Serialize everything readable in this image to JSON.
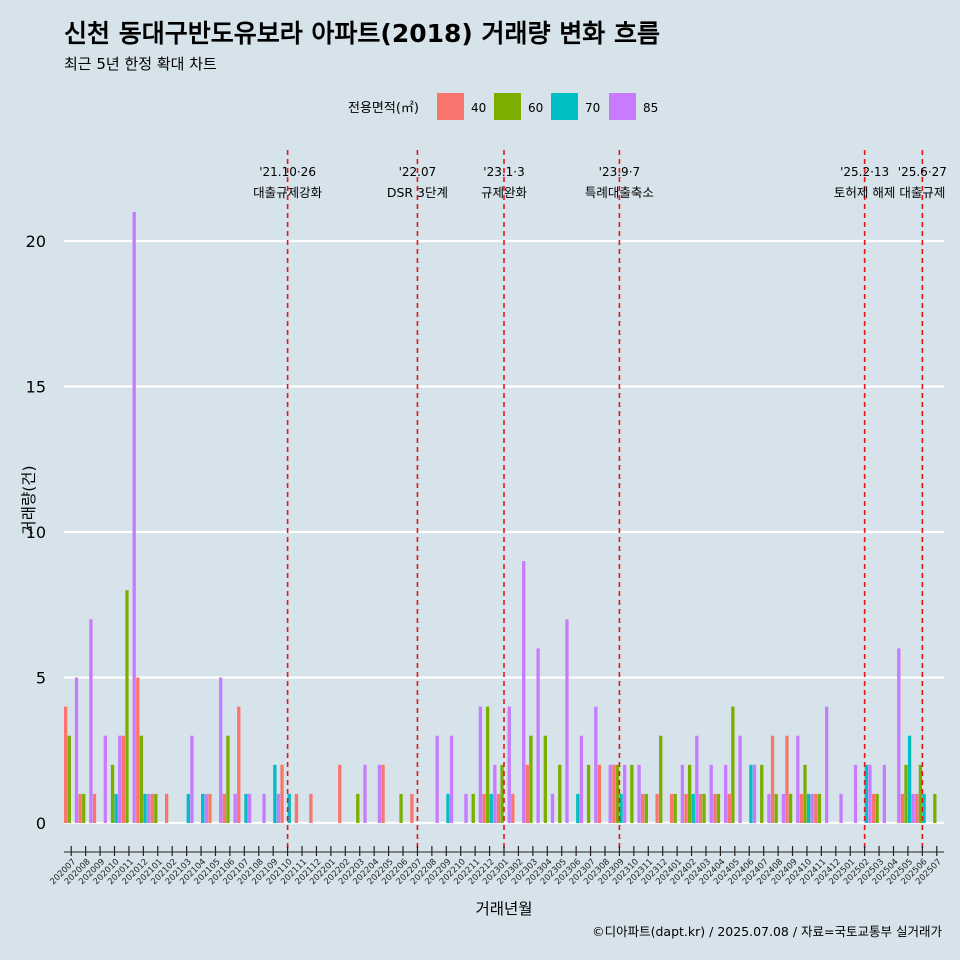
{
  "title": "신천 동대구반도유보라 아파트(2018) 거래량 변화 흐름",
  "subtitle": "최근 5년 한정 확대 차트",
  "caption": "©디아파트(dapt.kr) / 2025.07.08 / 자료=국토교통부 실거래가",
  "colors": {
    "background": "#d6e3ea",
    "grid": "#ffffff",
    "event_line": "#e8141a",
    "s40": "#f8766d",
    "s60": "#7cae00",
    "s70": "#00bfc4",
    "s85": "#c77cff"
  },
  "chart_data": {
    "type": "bar",
    "xlabel": "거래년월",
    "ylabel": "거래량(건)",
    "ylim": [
      0,
      21
    ],
    "yticks": [
      0,
      5,
      10,
      15,
      20
    ],
    "grid": true,
    "legend": {
      "title": "전용면적(㎡)",
      "position": "top"
    },
    "categories": [
      "202007",
      "202008",
      "202009",
      "202010",
      "202011",
      "202012",
      "202101",
      "202102",
      "202103",
      "202104",
      "202105",
      "202106",
      "202107",
      "202108",
      "202109",
      "202110",
      "202111",
      "202112",
      "202201",
      "202202",
      "202203",
      "202204",
      "202205",
      "202206",
      "202207",
      "202208",
      "202209",
      "202210",
      "202211",
      "202212",
      "202301",
      "202302",
      "202303",
      "202304",
      "202305",
      "202306",
      "202307",
      "202308",
      "202309",
      "202310",
      "202311",
      "202312",
      "202401",
      "202402",
      "202403",
      "202404",
      "202405",
      "202406",
      "202407",
      "202408",
      "202409",
      "202410",
      "202411",
      "202412",
      "202501",
      "202502",
      "202503",
      "202504",
      "202505",
      "202506",
      "202507"
    ],
    "series": [
      {
        "name": "40",
        "values": [
          4,
          1,
          1,
          0,
          3,
          5,
          1,
          1,
          0,
          0,
          1,
          1,
          4,
          0,
          0,
          2,
          1,
          1,
          0,
          2,
          0,
          0,
          2,
          0,
          1,
          0,
          0,
          0,
          0,
          1,
          1,
          1,
          2,
          0,
          0,
          0,
          0,
          2,
          2,
          0,
          1,
          1,
          1,
          1,
          1,
          1,
          1,
          0,
          0,
          3,
          3,
          1,
          1,
          0,
          0,
          0,
          1,
          0,
          1,
          1,
          0
        ]
      },
      {
        "name": "60",
        "values": [
          3,
          1,
          0,
          2,
          8,
          3,
          1,
          0,
          0,
          0,
          0,
          3,
          0,
          0,
          0,
          0,
          0,
          0,
          0,
          0,
          1,
          0,
          0,
          1,
          0,
          0,
          0,
          0,
          1,
          4,
          2,
          0,
          3,
          3,
          2,
          0,
          2,
          0,
          2,
          2,
          1,
          3,
          1,
          2,
          1,
          1,
          4,
          0,
          2,
          1,
          1,
          2,
          1,
          0,
          0,
          0,
          1,
          0,
          2,
          2,
          1
        ]
      },
      {
        "name": "70",
        "values": [
          0,
          0,
          0,
          1,
          0,
          1,
          0,
          0,
          1,
          1,
          0,
          0,
          1,
          0,
          2,
          1,
          0,
          0,
          0,
          0,
          0,
          0,
          0,
          0,
          0,
          0,
          1,
          0,
          0,
          1,
          0,
          0,
          0,
          0,
          0,
          1,
          0,
          0,
          1,
          0,
          0,
          0,
          0,
          1,
          0,
          0,
          0,
          2,
          0,
          0,
          0,
          1,
          0,
          0,
          0,
          2,
          0,
          0,
          3,
          1,
          0
        ]
      },
      {
        "name": "85",
        "values": [
          5,
          7,
          3,
          3,
          21,
          1,
          0,
          0,
          3,
          1,
          5,
          1,
          1,
          1,
          1,
          0,
          0,
          0,
          0,
          0,
          2,
          2,
          0,
          0,
          0,
          3,
          3,
          1,
          4,
          2,
          4,
          9,
          6,
          1,
          7,
          3,
          4,
          2,
          2,
          2,
          0,
          0,
          2,
          3,
          2,
          2,
          3,
          2,
          1,
          1,
          3,
          1,
          4,
          1,
          2,
          2,
          2,
          6,
          1,
          0,
          0
        ]
      }
    ],
    "events": [
      {
        "at": "202110",
        "date": "'21.10·26",
        "label": "대출규제강화"
      },
      {
        "at": "202207",
        "date": "'22.07",
        "label": "DSR 3단계"
      },
      {
        "at": "202301",
        "date": "'23.1·3",
        "label": "규제완화"
      },
      {
        "at": "202309",
        "date": "'23.9·7",
        "label": "특례대출축소"
      },
      {
        "at": "202502",
        "date": "'25.2·13",
        "label": "토허제 해제"
      },
      {
        "at": "202506",
        "date": "'25.6·27",
        "label": "대출규제"
      }
    ]
  }
}
